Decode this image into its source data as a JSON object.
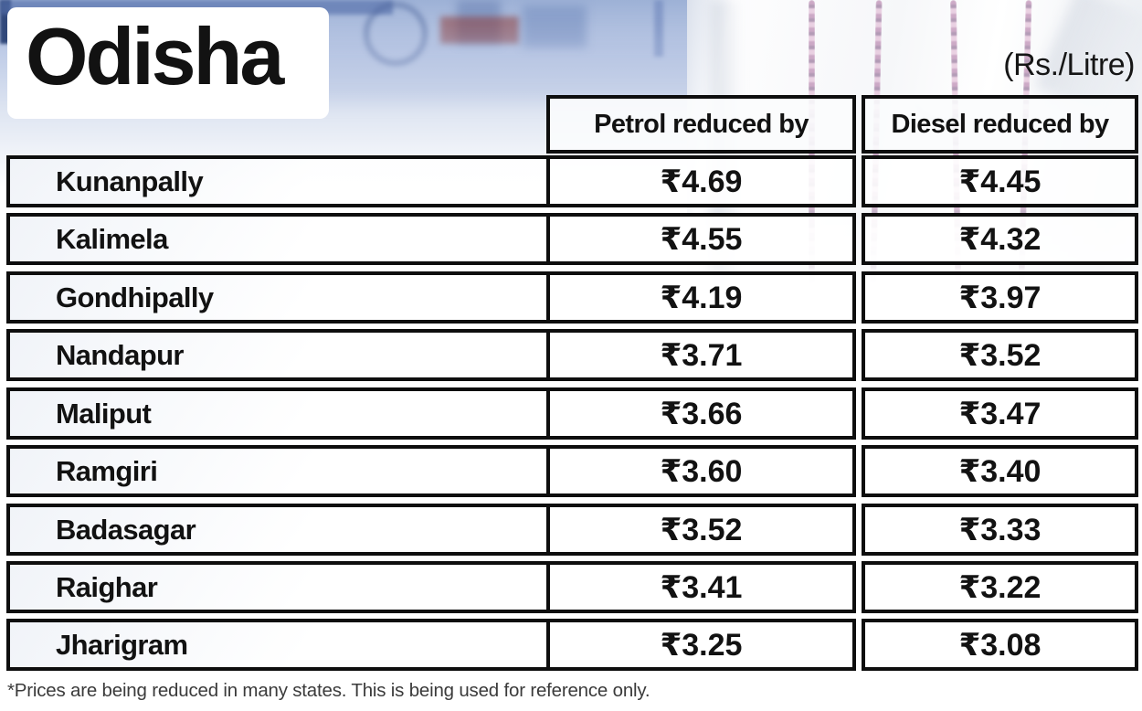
{
  "header": {
    "title": "Odisha",
    "unit_label": "(Rs./Litre)"
  },
  "table": {
    "columns": [
      {
        "label": "Petrol reduced by"
      },
      {
        "label": "Diesel reduced by"
      }
    ],
    "rows": [
      {
        "name": "Kunanpally",
        "petrol": "₹4.69",
        "diesel": "₹4.45"
      },
      {
        "name": "Kalimela",
        "petrol": "₹4.55",
        "diesel": "₹4.32"
      },
      {
        "name": "Gondhipally",
        "petrol": "₹4.19",
        "diesel": "₹3.97"
      },
      {
        "name": "Nandapur",
        "petrol": "₹3.71",
        "diesel": "₹3.52"
      },
      {
        "name": "Maliput",
        "petrol": "₹3.66",
        "diesel": "₹3.47"
      },
      {
        "name": "Ramgiri",
        "petrol": "₹3.60",
        "diesel": "₹3.40"
      },
      {
        "name": "Badasagar",
        "petrol": "₹3.52",
        "diesel": "₹3.33"
      },
      {
        "name": "Raighar",
        "petrol": "₹3.41",
        "diesel": "₹3.22"
      },
      {
        "name": "Jharigram",
        "petrol": "₹3.25",
        "diesel": "₹3.08"
      }
    ]
  },
  "footnote": "*Prices are being reduced in many states. This is being used for reference only.",
  "colors": {
    "table_border": "#0e0e0e",
    "text": "#121212",
    "background_blue": "#9db1d6",
    "garland_pink": "#a8689b"
  },
  "chart_data": {
    "type": "table",
    "title": "Odisha",
    "unit": "Rs./Litre",
    "columns": [
      "Petrol reduced by",
      "Diesel reduced by"
    ],
    "categories": [
      "Kunanpally",
      "Kalimela",
      "Gondhipally",
      "Nandapur",
      "Maliput",
      "Ramgiri",
      "Badasagar",
      "Raighar",
      "Jharigram"
    ],
    "series": [
      {
        "name": "Petrol reduced by",
        "values": [
          4.69,
          4.55,
          4.19,
          3.71,
          3.66,
          3.6,
          3.52,
          3.41,
          3.25
        ]
      },
      {
        "name": "Diesel reduced by",
        "values": [
          4.45,
          4.32,
          3.97,
          3.52,
          3.47,
          3.4,
          3.33,
          3.22,
          3.08
        ]
      }
    ],
    "footnote": "*Prices are being reduced in many states. This is being used for reference only."
  }
}
